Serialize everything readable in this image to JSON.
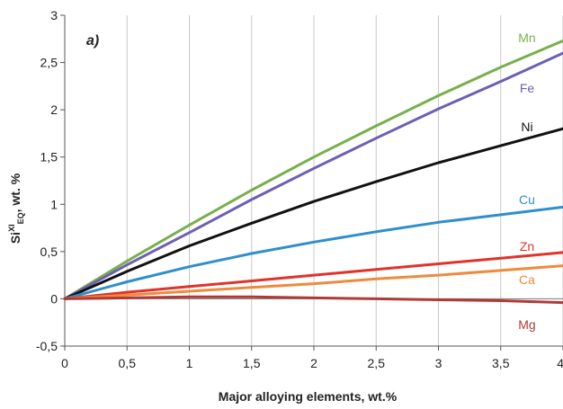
{
  "chart_data": {
    "type": "line",
    "panel_label": "a)",
    "title": "",
    "xlabel": "Major alloying elements, wt.%",
    "ylabel": {
      "base": "Si",
      "sup": "XI",
      "sub": "EQ",
      "suffix": ", wt. %"
    },
    "xlim": [
      0,
      4
    ],
    "ylim": [
      -0.5,
      3
    ],
    "x_ticks": [
      {
        "value": 0,
        "label": "0"
      },
      {
        "value": 0.5,
        "label": "0,5"
      },
      {
        "value": 1,
        "label": "1"
      },
      {
        "value": 1.5,
        "label": "1,5"
      },
      {
        "value": 2,
        "label": "2"
      },
      {
        "value": 2.5,
        "label": "2,5"
      },
      {
        "value": 3,
        "label": "3"
      },
      {
        "value": 3.5,
        "label": "3,5"
      },
      {
        "value": 4,
        "label": "4"
      }
    ],
    "y_ticks": [
      {
        "value": -0.5,
        "label": "-0,5"
      },
      {
        "value": 0,
        "label": "0"
      },
      {
        "value": 0.5,
        "label": "0,5"
      },
      {
        "value": 1,
        "label": "1"
      },
      {
        "value": 1.5,
        "label": "1,5"
      },
      {
        "value": 2,
        "label": "2"
      },
      {
        "value": 2.5,
        "label": "2,5"
      },
      {
        "value": 3,
        "label": "3"
      }
    ],
    "grid": {
      "vertical": true,
      "horizontal": false
    },
    "series": [
      {
        "name": "Mn",
        "color": "#77b04b",
        "x": [
          0,
          0.5,
          1,
          1.5,
          2,
          2.5,
          3,
          3.5,
          4
        ],
        "y": [
          0,
          0.4,
          0.78,
          1.15,
          1.5,
          1.83,
          2.15,
          2.45,
          2.73
        ]
      },
      {
        "name": "Fe",
        "color": "#6d5fb5",
        "x": [
          0,
          0.5,
          1,
          1.5,
          2,
          2.5,
          3,
          3.5,
          4
        ],
        "y": [
          0,
          0.36,
          0.7,
          1.05,
          1.38,
          1.7,
          2.01,
          2.3,
          2.6
        ]
      },
      {
        "name": "Ni",
        "color": "#111111",
        "x": [
          0,
          0.5,
          1,
          1.5,
          2,
          2.5,
          3,
          3.5,
          4
        ],
        "y": [
          0,
          0.29,
          0.56,
          0.8,
          1.03,
          1.24,
          1.44,
          1.62,
          1.8
        ]
      },
      {
        "name": "Cu",
        "color": "#2f8fcb",
        "x": [
          0,
          0.5,
          1,
          1.5,
          2,
          2.5,
          3,
          3.5,
          4
        ],
        "y": [
          0,
          0.18,
          0.34,
          0.48,
          0.6,
          0.71,
          0.81,
          0.89,
          0.97
        ]
      },
      {
        "name": "Zn",
        "color": "#e0332b",
        "x": [
          0,
          0.5,
          1,
          1.5,
          2,
          2.5,
          3,
          3.5,
          4
        ],
        "y": [
          0,
          0.07,
          0.13,
          0.19,
          0.25,
          0.31,
          0.37,
          0.43,
          0.49
        ]
      },
      {
        "name": "Ca",
        "color": "#ef8a3c",
        "x": [
          0,
          0.5,
          1,
          1.5,
          2,
          2.5,
          3,
          3.5,
          4
        ],
        "y": [
          0,
          0.04,
          0.08,
          0.12,
          0.16,
          0.21,
          0.25,
          0.3,
          0.35
        ]
      },
      {
        "name": "Mg",
        "color": "#b03a38",
        "x": [
          0,
          0.5,
          1,
          1.5,
          2,
          2.5,
          3,
          3.5,
          4
        ],
        "y": [
          0,
          0.01,
          0.02,
          0.02,
          0.01,
          0.0,
          -0.01,
          -0.02,
          -0.04
        ]
      }
    ]
  }
}
